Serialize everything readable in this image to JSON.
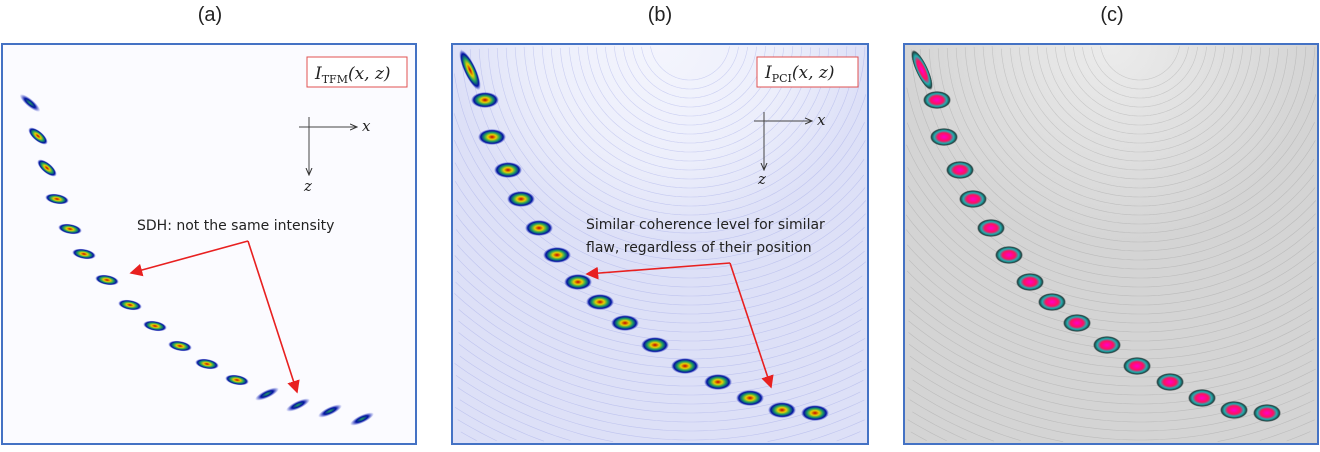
{
  "panels": [
    {
      "label": "(a)",
      "formula_main": "I",
      "formula_sub": "TFM",
      "formula_args": "(x, z)",
      "axis_x": "x",
      "axis_z": "z",
      "annotation": [
        "SDH: not the same intensity"
      ],
      "colormap": "white-blue-green-yellow-red"
    },
    {
      "label": "(b)",
      "formula_main": "I",
      "formula_sub": "PCI",
      "formula_args": "(x, z)",
      "axis_x": "x",
      "axis_z": "z",
      "annotation": [
        "Similar coherence level for similar",
        "flaw, regardless of their position"
      ],
      "colormap": "white-blue-green-yellow-red"
    },
    {
      "label": "(c)",
      "colormap": "grey-cyan-yellow-red-magenta"
    }
  ],
  "colors": {
    "frame": "#4472c4",
    "arrow": "#e82020",
    "label_box": "#e05050"
  }
}
